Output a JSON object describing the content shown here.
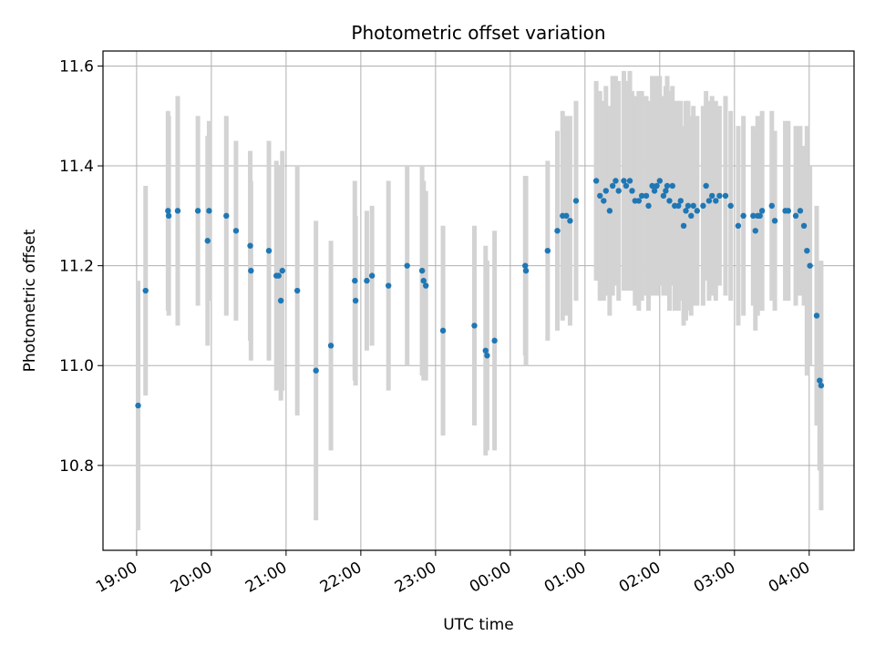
{
  "chart_data": {
    "type": "scatter",
    "title": "Photometric offset variation",
    "xlabel": "UTC time",
    "ylabel": "Photometric offset",
    "x_tick_labels": [
      "19:00",
      "20:00",
      "21:00",
      "22:00",
      "23:00",
      "00:00",
      "01:00",
      "02:00",
      "03:00",
      "04:00"
    ],
    "y_ticks": [
      10.8,
      11.0,
      11.2,
      11.4,
      11.6
    ],
    "y_tick_labels": [
      "10.8",
      "11.0",
      "11.2",
      "11.4",
      "11.6"
    ],
    "x_unit": "hours after 19:00 UTC",
    "xlim": [
      -0.45,
      9.6
    ],
    "ylim": [
      10.63,
      11.63
    ],
    "grid": true,
    "colors": {
      "point": "#1f77b4",
      "errorbar": "#d3d3d3",
      "grid": "#b0b0b0"
    },
    "series": [
      {
        "x": [
          0.02,
          0.12,
          0.42,
          0.43,
          0.55,
          0.82,
          0.95,
          0.97,
          1.2,
          1.33,
          1.52,
          1.53,
          1.77,
          1.87,
          1.9,
          1.93,
          1.95,
          2.15,
          2.4,
          2.6,
          2.92,
          2.93,
          3.08,
          3.15,
          3.37,
          3.62,
          3.82,
          3.84,
          3.87,
          4.1,
          4.52,
          4.67,
          4.69,
          4.79,
          5.2,
          5.21,
          5.5,
          5.63,
          5.7,
          5.75,
          5.8,
          5.88,
          6.15,
          6.2,
          6.25,
          6.28,
          6.33,
          6.37,
          6.41,
          6.45,
          6.52,
          6.55,
          6.6,
          6.63,
          6.67,
          6.72,
          6.76,
          6.82,
          6.85,
          6.9,
          6.93,
          6.96,
          7.0,
          7.05,
          7.08,
          7.1,
          7.13,
          7.17,
          7.2,
          7.25,
          7.28,
          7.32,
          7.35,
          7.38,
          7.42,
          7.45,
          7.5,
          7.58,
          7.62,
          7.66,
          7.7,
          7.75,
          7.8,
          7.88,
          7.95,
          8.05,
          8.12,
          8.25,
          8.28,
          8.31,
          8.34,
          8.37,
          8.5,
          8.54,
          8.68,
          8.72,
          8.82,
          8.88,
          8.93,
          8.97,
          9.01,
          9.1,
          9.14,
          9.16
        ],
        "y": [
          10.92,
          11.15,
          11.31,
          11.3,
          11.31,
          11.31,
          11.25,
          11.31,
          11.3,
          11.27,
          11.24,
          11.19,
          11.23,
          11.18,
          11.18,
          11.13,
          11.19,
          11.15,
          10.99,
          11.04,
          11.17,
          11.13,
          11.17,
          11.18,
          11.16,
          11.2,
          11.19,
          11.17,
          11.16,
          11.07,
          11.08,
          11.03,
          11.02,
          11.05,
          11.2,
          11.19,
          11.23,
          11.27,
          11.3,
          11.3,
          11.29,
          11.33,
          11.37,
          11.34,
          11.33,
          11.35,
          11.31,
          11.36,
          11.37,
          11.35,
          11.37,
          11.36,
          11.37,
          11.35,
          11.33,
          11.33,
          11.34,
          11.34,
          11.32,
          11.36,
          11.35,
          11.36,
          11.37,
          11.34,
          11.35,
          11.36,
          11.33,
          11.36,
          11.32,
          11.32,
          11.33,
          11.28,
          11.31,
          11.32,
          11.3,
          11.32,
          11.31,
          11.32,
          11.36,
          11.33,
          11.34,
          11.33,
          11.34,
          11.34,
          11.32,
          11.28,
          11.3,
          11.3,
          11.27,
          11.3,
          11.3,
          11.31,
          11.32,
          11.29,
          11.31,
          11.31,
          11.3,
          11.31,
          11.28,
          11.23,
          11.2,
          11.1,
          10.97,
          10.96
        ],
        "err": [
          0.25,
          0.21,
          0.2,
          0.2,
          0.23,
          0.19,
          0.21,
          0.18,
          0.2,
          0.18,
          0.19,
          0.18,
          0.22,
          0.23,
          0.22,
          0.2,
          0.24,
          0.25,
          0.3,
          0.21,
          0.2,
          0.17,
          0.14,
          0.14,
          0.21,
          0.2,
          0.21,
          0.2,
          0.19,
          0.21,
          0.2,
          0.21,
          0.19,
          0.22,
          0.18,
          0.19,
          0.18,
          0.2,
          0.21,
          0.2,
          0.21,
          0.2,
          0.2,
          0.21,
          0.2,
          0.21,
          0.21,
          0.22,
          0.21,
          0.22,
          0.22,
          0.21,
          0.22,
          0.2,
          0.21,
          0.22,
          0.21,
          0.2,
          0.21,
          0.22,
          0.21,
          0.22,
          0.21,
          0.2,
          0.21,
          0.22,
          0.22,
          0.2,
          0.21,
          0.21,
          0.2,
          0.2,
          0.22,
          0.21,
          0.2,
          0.2,
          0.19,
          0.2,
          0.19,
          0.2,
          0.2,
          0.2,
          0.18,
          0.2,
          0.19,
          0.2,
          0.2,
          0.18,
          0.2,
          0.2,
          0.19,
          0.2,
          0.19,
          0.18,
          0.18,
          0.18,
          0.18,
          0.17,
          0.16,
          0.25,
          0.2,
          0.22,
          0.18,
          0.25
        ]
      }
    ]
  }
}
